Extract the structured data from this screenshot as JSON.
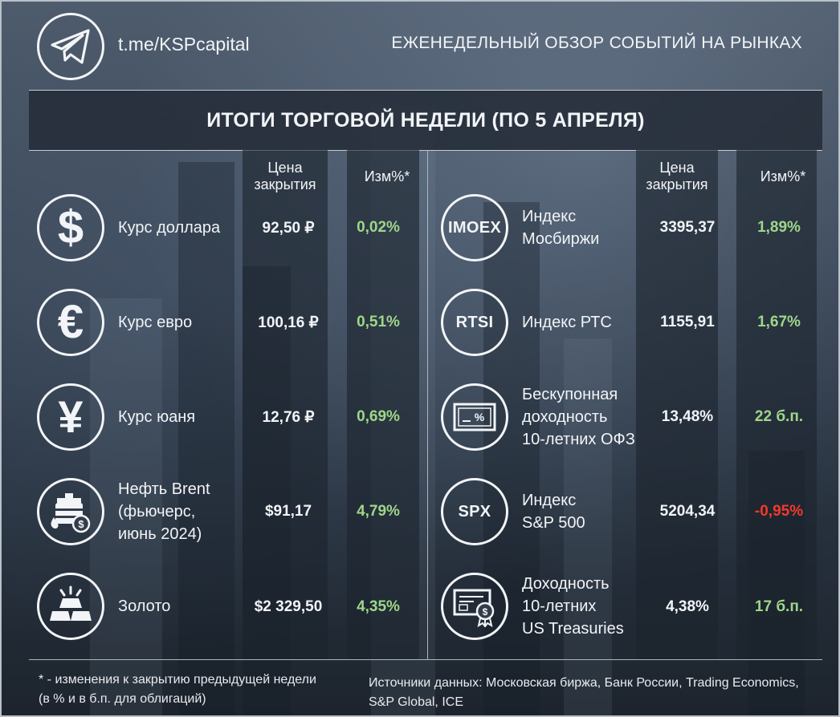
{
  "header": {
    "channel": "t.me/KSPcapital",
    "title": "ЕЖЕНЕДЕЛЬНЫЙ ОБЗОР СОБЫТИЙ НА РЫНКАХ"
  },
  "band_title": "ИТОГИ ТОРГОВОЙ НЕДЕЛИ (ПО 5 АПРЕЛЯ)",
  "columns": {
    "price_line1": "Цена",
    "price_line2": "закрытия",
    "change": "Изм%*"
  },
  "left": [
    {
      "icon": "dollar-icon",
      "symbol": "$",
      "label": [
        "Курс доллара"
      ],
      "price": "92,50 ₽",
      "change": "0,02%",
      "direction": "up"
    },
    {
      "icon": "euro-icon",
      "symbol": "€",
      "label": [
        "Курс евро"
      ],
      "price": "100,16 ₽",
      "change": "0,51%",
      "direction": "up"
    },
    {
      "icon": "yuan-icon",
      "symbol": "¥",
      "label": [
        "Курс юаня"
      ],
      "price": "12,76 ₽",
      "change": "0,69%",
      "direction": "up"
    },
    {
      "icon": "oil-barrel-icon",
      "label": [
        "Нефть Brent",
        "(фьючерс,",
        "июнь 2024)"
      ],
      "price": "$91,17",
      "change": "4,79%",
      "direction": "up"
    },
    {
      "icon": "gold-bars-icon",
      "label": [
        "Золото"
      ],
      "price": "$2 329,50",
      "change": "4,35%",
      "direction": "up"
    }
  ],
  "right": [
    {
      "icon": "imoex-icon",
      "badge": "IMOEX",
      "label": [
        "Индекс",
        "Мосбиржи"
      ],
      "price": "3395,37",
      "change": "1,89%",
      "direction": "up"
    },
    {
      "icon": "rtsi-icon",
      "badge": "RTSI",
      "label": [
        "Индекс РТС"
      ],
      "price": "1155,91",
      "change": "1,67%",
      "direction": "up"
    },
    {
      "icon": "bond-certificate-icon",
      "label": [
        "Бескупонная",
        "доходность",
        "10-летних ОФЗ"
      ],
      "price": "13,48%",
      "change": "22 б.п.",
      "direction": "up"
    },
    {
      "icon": "spx-icon",
      "badge": "SPX",
      "label": [
        "Индекс",
        "S&P 500"
      ],
      "price": "5204,34",
      "change": "-0,95%",
      "direction": "down"
    },
    {
      "icon": "treasury-certificate-icon",
      "label": [
        "Доходность",
        "10-летних",
        "US Treasuries"
      ],
      "price": "4,38%",
      "change": "17 б.п.",
      "direction": "up"
    }
  ],
  "footnote": [
    "* - изменения к закрытию предыдущей недели",
    "(в % и в б.п. для облигаций)"
  ],
  "sources": "Источники данных: Московская биржа, Банк России, Trading Economics, S&P Global, ICE",
  "colors": {
    "positive": "#9fd68a",
    "negative": "#f23a2a"
  }
}
